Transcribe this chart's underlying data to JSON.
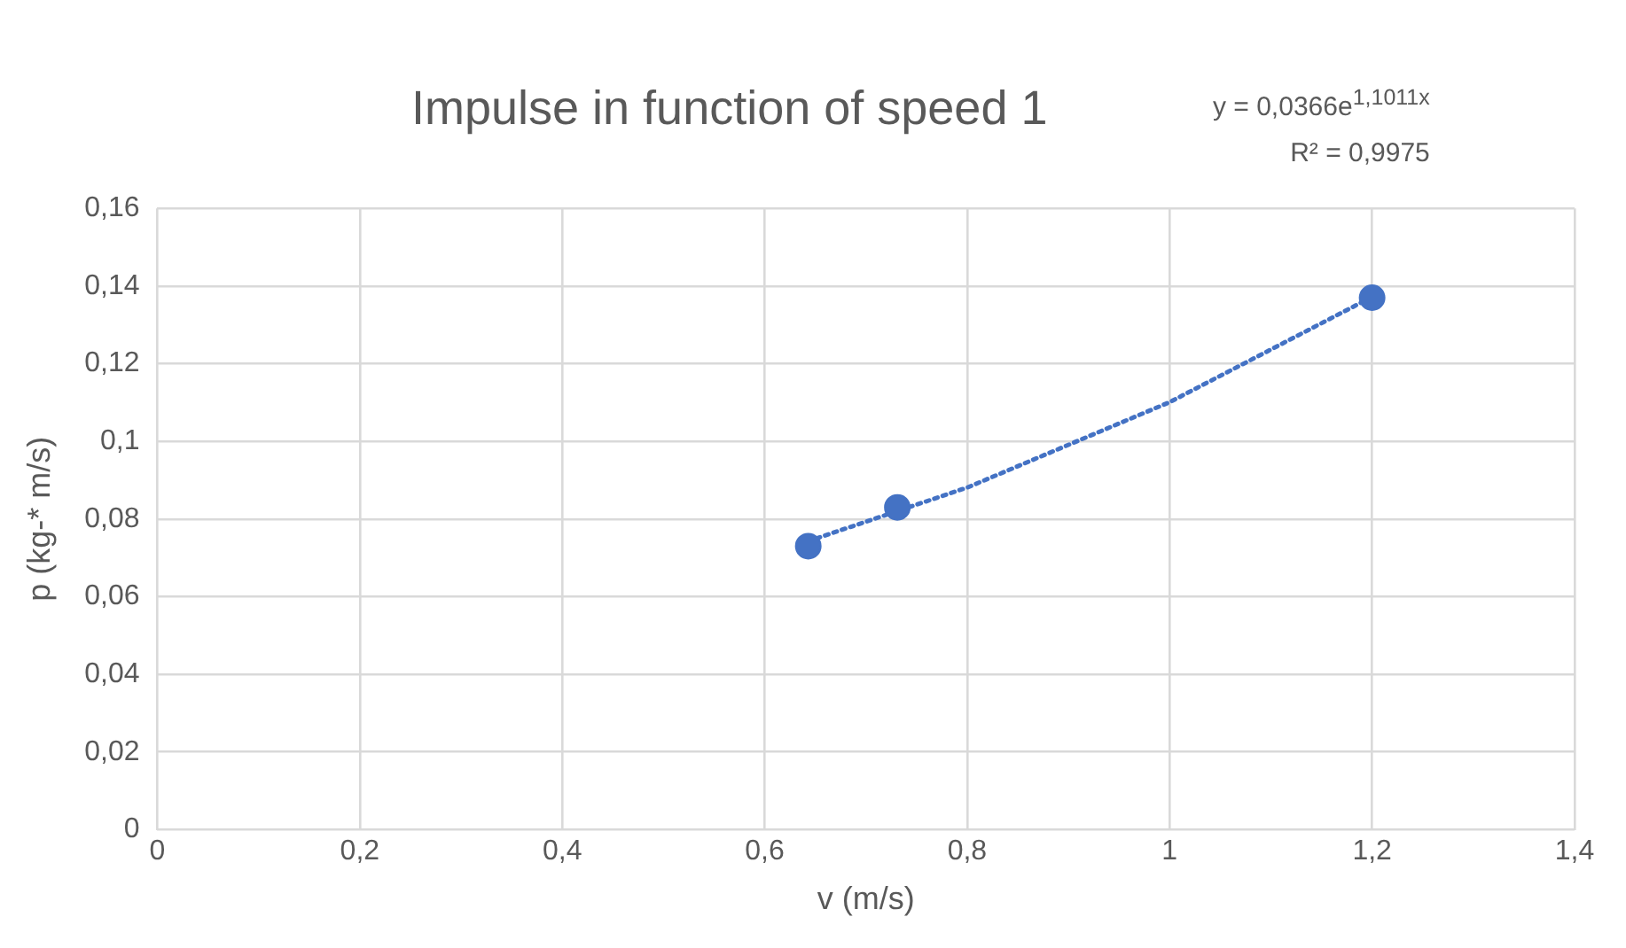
{
  "chart_data": {
    "type": "scatter",
    "title": "Impulse in function of speed 1",
    "xlabel": "v (m/s)",
    "ylabel": "p (kg-* m/s)",
    "annotations": [
      "y = 0,0366e$^{1,1011x}$",
      "R² = 0,9975"
    ],
    "xlim": [
      0,
      1.4
    ],
    "xticks": [
      {
        "value": 0,
        "label": "0"
      },
      {
        "value": 0.2,
        "label": "0,2"
      },
      {
        "value": 0.4,
        "label": "0,4"
      },
      {
        "value": 0.6,
        "label": "0,6"
      },
      {
        "value": 0.8,
        "label": "0,8"
      },
      {
        "value": 1,
        "label": "1"
      },
      {
        "value": 1.2,
        "label": "1,2"
      },
      {
        "value": 1.4,
        "label": "1,4"
      }
    ],
    "ylim": [
      0,
      0.16
    ],
    "yticks": [
      {
        "value": 0,
        "label": "0"
      },
      {
        "value": 0.02,
        "label": "0,02"
      },
      {
        "value": 0.04,
        "label": "0,04"
      },
      {
        "value": 0.06,
        "label": "0,06"
      },
      {
        "value": 0.08,
        "label": "0,08"
      },
      {
        "value": 0.1,
        "label": "0,1"
      },
      {
        "value": 0.12,
        "label": "0,12"
      },
      {
        "value": 0.14,
        "label": "0,14"
      },
      {
        "value": 0.16,
        "label": "0,16"
      }
    ],
    "grid": true,
    "marker": "circle",
    "legend": false,
    "series": [
      {
        "color": "#4472c4",
        "x": [
          0.643,
          0.731,
          1.2
        ],
        "values": [
          0.073,
          0.083,
          0.137
        ]
      },
      {
        "type": "line",
        "line_style": "dotted",
        "marker": "none",
        "color": "#4472c4",
        "x": [
          0.643,
          0.8,
          1.0,
          1.2
        ],
        "values": [
          0.0743,
          0.0881,
          0.1101,
          0.1372
        ]
      }
    ]
  }
}
